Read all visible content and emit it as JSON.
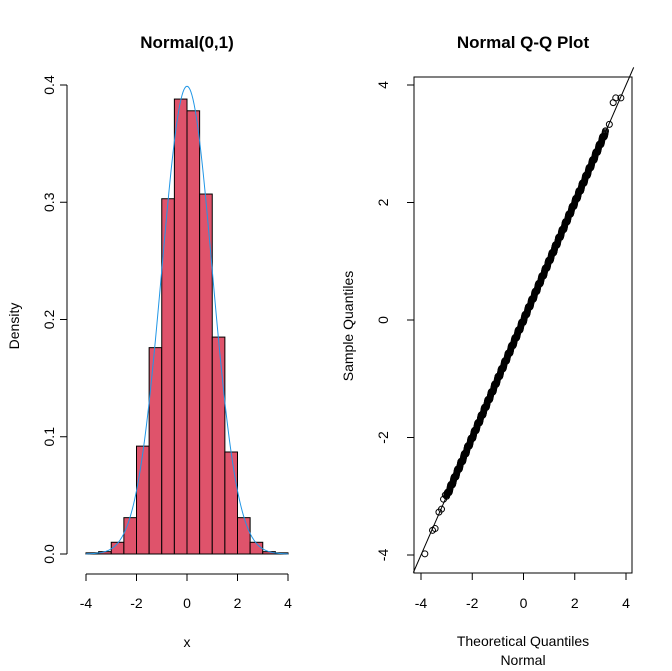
{
  "chart_data": [
    {
      "type": "bar",
      "title": "Normal(0,1)",
      "xlabel": "x",
      "ylabel": "Density",
      "xlim": [
        -4,
        4
      ],
      "ylim": [
        0,
        0.4
      ],
      "x_ticks": [
        "-4",
        "-2",
        "0",
        "2",
        "4"
      ],
      "y_ticks": [
        "0.0",
        "0.1",
        "0.2",
        "0.3",
        "0.4"
      ],
      "bin_width": 0.5,
      "bins": [
        {
          "start": -4.0,
          "end": -3.5,
          "value": 0.001
        },
        {
          "start": -3.5,
          "end": -3.0,
          "value": 0.002
        },
        {
          "start": -3.0,
          "end": -2.5,
          "value": 0.01
        },
        {
          "start": -2.5,
          "end": -2.0,
          "value": 0.031
        },
        {
          "start": -2.0,
          "end": -1.5,
          "value": 0.092
        },
        {
          "start": -1.5,
          "end": -1.0,
          "value": 0.176
        },
        {
          "start": -1.0,
          "end": -0.5,
          "value": 0.303
        },
        {
          "start": -0.5,
          "end": 0.0,
          "value": 0.388
        },
        {
          "start": 0.0,
          "end": 0.5,
          "value": 0.378
        },
        {
          "start": 0.5,
          "end": 1.0,
          "value": 0.307
        },
        {
          "start": 1.0,
          "end": 1.5,
          "value": 0.185
        },
        {
          "start": 1.5,
          "end": 2.0,
          "value": 0.087
        },
        {
          "start": 2.0,
          "end": 2.5,
          "value": 0.031
        },
        {
          "start": 2.5,
          "end": 3.0,
          "value": 0.01
        },
        {
          "start": 3.0,
          "end": 3.5,
          "value": 0.002
        },
        {
          "start": 3.5,
          "end": 4.0,
          "value": 0.001
        }
      ],
      "overlay": {
        "type": "line",
        "name": "normal density curve",
        "mean": 0,
        "sd": 1,
        "x_range": [
          -4,
          4
        ]
      },
      "colors": {
        "bars": "#df536b",
        "curve": "#2297e6",
        "axis": "#000000"
      }
    },
    {
      "type": "scatter",
      "title": "Normal Q-Q Plot",
      "xlabel": "Theoretical Quantiles",
      "xlabel2": "Normal",
      "ylabel": "Sample Quantiles",
      "xlim": [
        -4,
        4
      ],
      "ylim": [
        -4,
        4
      ],
      "x_ticks": [
        "-4",
        "-2",
        "0",
        "2",
        "4"
      ],
      "y_ticks": [
        "-4",
        "-2",
        "0",
        "2",
        "4"
      ],
      "reference_line": {
        "intercept": 0,
        "slope": 1
      },
      "extreme_points": [
        {
          "x": -3.85,
          "y": -3.98
        },
        {
          "x": -3.55,
          "y": -3.58
        },
        {
          "x": -3.45,
          "y": -3.55
        },
        {
          "x": -3.3,
          "y": -3.27
        },
        {
          "x": -3.2,
          "y": -3.22
        },
        {
          "x": -3.12,
          "y": -3.05
        },
        {
          "x": -3.05,
          "y": -2.98
        },
        {
          "x": 3.35,
          "y": 3.33
        },
        {
          "x": 3.5,
          "y": 3.7
        },
        {
          "x": 3.6,
          "y": 3.78
        },
        {
          "x": 3.8,
          "y": 3.78
        }
      ],
      "dense_range": [
        -3.0,
        3.2
      ],
      "colors": {
        "points": "#000000",
        "line": "#000000"
      }
    }
  ]
}
